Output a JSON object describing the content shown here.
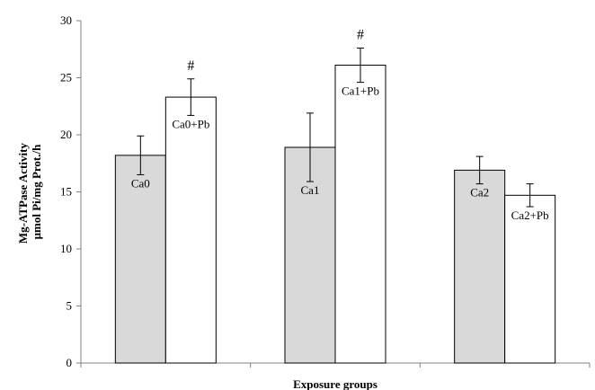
{
  "chart_data": {
    "type": "bar",
    "title": "",
    "xlabel": "Exposure groups",
    "ylabel_lines": [
      "Mg-ATPase Activity",
      "μmol Pi/mg Prot./h"
    ],
    "ylim": [
      0,
      30
    ],
    "yticks": [
      0,
      5,
      10,
      15,
      20,
      25,
      30
    ],
    "grid": false,
    "legend": "none",
    "colors": {
      "gray": "#d9d9d9",
      "white": "#ffffff",
      "edge": "#000000"
    },
    "groups": [
      {
        "bars": [
          {
            "label": "Ca0",
            "value": 18.2,
            "error": 1.7,
            "fill": "gray",
            "annotation": ""
          },
          {
            "label": "Ca0+Pb",
            "value": 23.3,
            "error": 1.6,
            "fill": "white",
            "annotation": "#"
          }
        ]
      },
      {
        "bars": [
          {
            "label": "Ca1",
            "value": 18.9,
            "error": 3.0,
            "fill": "gray",
            "annotation": ""
          },
          {
            "label": "Ca1+Pb",
            "value": 26.1,
            "error": 1.5,
            "fill": "white",
            "annotation": "#"
          }
        ]
      },
      {
        "bars": [
          {
            "label": "Ca2",
            "value": 16.9,
            "error": 1.2,
            "fill": "gray",
            "annotation": ""
          },
          {
            "label": "Ca2+Pb",
            "value": 14.7,
            "error": 1.0,
            "fill": "white",
            "annotation": ""
          }
        ]
      }
    ]
  }
}
